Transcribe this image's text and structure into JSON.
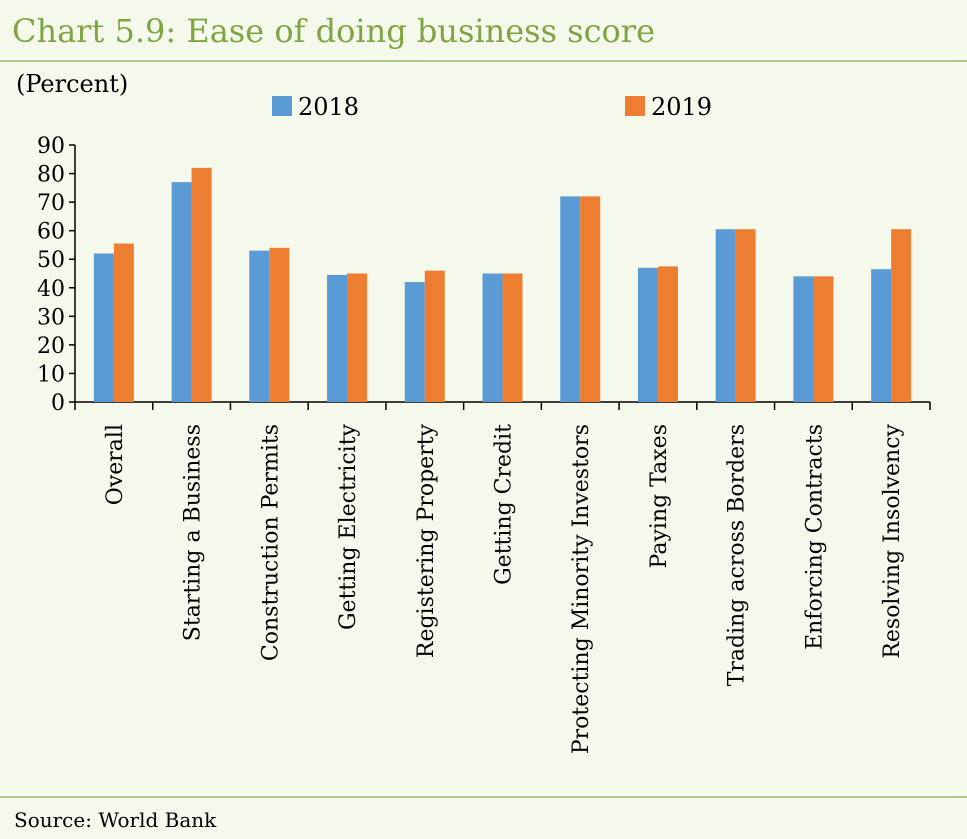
{
  "page": {
    "title": "Chart 5.9: Ease of doing business score",
    "source": "Source: World Bank"
  },
  "chart_data": {
    "type": "bar",
    "ylabel": "(Percent)",
    "ylim": [
      0,
      90
    ],
    "yticks": [
      0,
      10,
      20,
      30,
      40,
      50,
      60,
      70,
      80,
      90
    ],
    "categories": [
      "Overall",
      "Starting a Business",
      "Construction Permits",
      "Getting Electricity",
      "Registering Property",
      "Getting Credit",
      "Protecting Minority Investors",
      "Paying Taxes",
      "Trading across Borders",
      "Enforcing Contracts",
      "Resolving Insolvency"
    ],
    "series": [
      {
        "name": "2018",
        "color": "#5b9bd5",
        "values": [
          52,
          77,
          53,
          44.5,
          42,
          45,
          72,
          47,
          60.5,
          44,
          46.5
        ]
      },
      {
        "name": "2019",
        "color": "#ed7d31",
        "values": [
          55.5,
          82,
          54,
          45,
          46,
          45,
          72,
          47.5,
          60.5,
          44,
          60.5
        ]
      }
    ],
    "legend_position": "top"
  }
}
